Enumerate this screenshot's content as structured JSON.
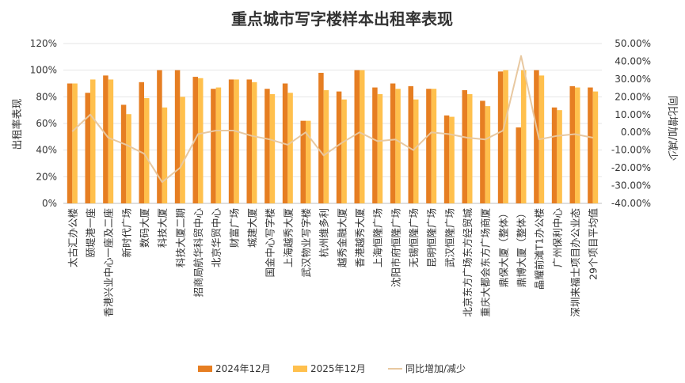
{
  "chart_data": {
    "type": "bar",
    "title": "重点城市写字楼样本出租率表现",
    "ylabel": "出租率表现",
    "y2label": "同比增加/减少",
    "ylim": [
      0,
      120
    ],
    "y2lim": [
      -40,
      50
    ],
    "yticks": [
      "0%",
      "20%",
      "40%",
      "60%",
      "80%",
      "100%",
      "120%"
    ],
    "y2ticks": [
      "-40.00%",
      "-30.00%",
      "-20.00%",
      "-10.00%",
      "0.00%",
      "10.00%",
      "20.00%",
      "30.00%",
      "40.00%",
      "50.00%"
    ],
    "categories": [
      "太古汇办公楼",
      "颐堤港一座",
      "香港兴业中心一座及二座",
      "新时代广场",
      "数码大厦",
      "科技大厦",
      "科技大厦二期",
      "招商局航华科贸中心",
      "北京华贸中心",
      "财富广场",
      "城建大厦",
      "国金中心写字楼",
      "上海越秀大厦",
      "武汉物业写字楼",
      "杭州维多利",
      "越秀金融大厦",
      "香港越秀大厦",
      "上海恒隆广场",
      "沈阳市府恒隆广场",
      "无锡恒隆广场",
      "昆明恒隆广场",
      "武汉恒隆广场",
      "北京东方广场东方经贸城",
      "重庆大都会东方广场商厦",
      "鼎保大厦（整体）",
      "鼎博大厦（整体）",
      "晶耀前滩T1办公楼",
      "广州保利中心",
      "深圳来福士项目办公业态",
      "29个项目平均值"
    ],
    "series": [
      {
        "name": "2024年12月",
        "color": "#E67E22",
        "values": [
          90,
          83,
          96,
          74,
          91,
          100,
          100,
          95,
          86,
          93,
          93,
          86,
          90,
          62,
          98,
          84,
          100,
          87,
          90,
          88,
          86,
          66,
          85,
          77,
          99,
          57,
          100,
          72,
          88,
          87
        ]
      },
      {
        "name": "2025年12月",
        "color": "#FFC04D",
        "values": [
          90,
          93,
          93,
          67,
          79,
          72,
          80,
          94,
          87,
          93,
          91,
          82,
          83,
          62,
          85,
          78,
          100,
          82,
          86,
          78,
          86,
          65,
          82,
          73,
          100,
          100,
          96,
          70,
          87,
          84
        ]
      },
      {
        "name": "同比增加/减少",
        "color": "#E8C8A0",
        "type": "line",
        "values": [
          0.5,
          10,
          -3,
          -7,
          -12,
          -28,
          -20,
          -1,
          1,
          1,
          -2,
          -4,
          -7,
          0,
          -13,
          -6,
          0,
          -5,
          -4,
          -10,
          0,
          -1,
          -3,
          -4,
          1,
          43,
          -4,
          -2,
          -1,
          -3
        ]
      }
    ],
    "legend": "bottom"
  }
}
